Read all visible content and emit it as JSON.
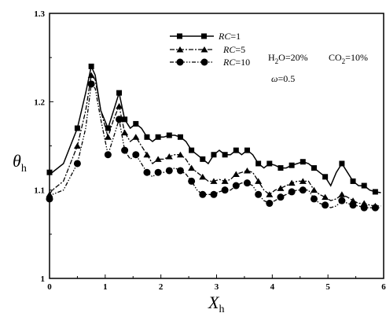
{
  "chart_data": {
    "type": "line",
    "title": "",
    "xlabel": "X",
    "xlabel_sub": "h",
    "ylabel": "θ",
    "ylabel_sub": "h",
    "xlim": [
      0,
      6
    ],
    "ylim": [
      1,
      1.3
    ],
    "xticks": [
      "0",
      "1",
      "2",
      "3",
      "4",
      "5",
      "6"
    ],
    "yticks": [
      "1",
      "1.1",
      "1.2",
      "1.3"
    ],
    "legend_position": "top-left",
    "series": [
      {
        "name": "RC=1",
        "name_italic": "RC",
        "name_rest": "=1",
        "marker": "square",
        "dash": "none",
        "x": [
          0,
          0.05,
          0.25,
          0.5,
          0.65,
          0.75,
          0.82,
          0.92,
          1.05,
          1.15,
          1.25,
          1.35,
          1.45,
          1.55,
          1.65,
          1.75,
          1.85,
          1.95,
          2.05,
          2.15,
          2.25,
          2.35,
          2.45,
          2.55,
          2.65,
          2.75,
          2.85,
          2.95,
          3.05,
          3.15,
          3.25,
          3.35,
          3.45,
          3.55,
          3.65,
          3.75,
          3.85,
          3.95,
          4.05,
          4.15,
          4.25,
          4.35,
          4.45,
          4.55,
          4.65,
          4.75,
          4.85,
          4.95,
          5.05,
          5.15,
          5.25,
          5.35,
          5.45,
          5.55,
          5.65,
          5.75,
          5.85,
          5.95
        ],
        "y": [
          1.12,
          1.12,
          1.13,
          1.17,
          1.21,
          1.24,
          1.23,
          1.19,
          1.17,
          1.19,
          1.21,
          1.18,
          1.17,
          1.175,
          1.17,
          1.16,
          1.155,
          1.16,
          1.16,
          1.162,
          1.162,
          1.16,
          1.155,
          1.145,
          1.14,
          1.135,
          1.13,
          1.14,
          1.145,
          1.14,
          1.14,
          1.145,
          1.14,
          1.145,
          1.14,
          1.13,
          1.125,
          1.13,
          1.128,
          1.125,
          1.125,
          1.128,
          1.13,
          1.132,
          1.13,
          1.125,
          1.12,
          1.115,
          1.105,
          1.12,
          1.13,
          1.12,
          1.11,
          1.105,
          1.105,
          1.1,
          1.098,
          1.097
        ],
        "marker_idx": [
          0,
          3,
          5,
          8,
          10,
          11,
          13,
          15,
          17,
          19,
          21,
          23,
          25,
          27,
          29,
          31,
          33,
          35,
          37,
          39,
          41,
          43,
          45,
          47,
          50,
          52,
          54,
          56
        ]
      },
      {
        "name": "RC=5",
        "name_italic": "RC",
        "name_rest": "=5",
        "marker": "triangle",
        "dash": "6,2,2,2",
        "x": [
          0,
          0.05,
          0.25,
          0.5,
          0.65,
          0.75,
          0.82,
          0.92,
          1.05,
          1.15,
          1.25,
          1.35,
          1.45,
          1.55,
          1.65,
          1.75,
          1.85,
          1.95,
          2.05,
          2.15,
          2.25,
          2.35,
          2.45,
          2.55,
          2.65,
          2.75,
          2.85,
          2.95,
          3.05,
          3.15,
          3.25,
          3.35,
          3.45,
          3.55,
          3.65,
          3.75,
          3.85,
          3.95,
          4.05,
          4.15,
          4.25,
          4.35,
          4.45,
          4.55,
          4.65,
          4.75,
          4.85,
          4.95,
          5.05,
          5.15,
          5.25,
          5.35,
          5.45,
          5.55,
          5.65,
          5.75,
          5.85,
          5.95
        ],
        "y": [
          1.095,
          1.1,
          1.11,
          1.15,
          1.19,
          1.23,
          1.225,
          1.19,
          1.16,
          1.18,
          1.195,
          1.165,
          1.155,
          1.16,
          1.15,
          1.14,
          1.13,
          1.135,
          1.135,
          1.138,
          1.14,
          1.14,
          1.135,
          1.125,
          1.12,
          1.115,
          1.11,
          1.11,
          1.112,
          1.11,
          1.112,
          1.118,
          1.12,
          1.122,
          1.12,
          1.11,
          1.1,
          1.095,
          1.1,
          1.102,
          1.105,
          1.108,
          1.11,
          1.11,
          1.11,
          1.1,
          1.095,
          1.092,
          1.088,
          1.09,
          1.095,
          1.092,
          1.088,
          1.085,
          1.085,
          1.083,
          1.082,
          1.082
        ],
        "marker_idx": [
          0,
          3,
          5,
          8,
          10,
          11,
          13,
          15,
          17,
          19,
          21,
          23,
          25,
          27,
          29,
          31,
          33,
          35,
          37,
          39,
          41,
          43,
          45,
          47,
          50,
          52,
          54,
          56
        ]
      },
      {
        "name": "RC=10",
        "name_italic": "RC",
        "name_rest": "=10",
        "marker": "circle",
        "dash": "5,2,1.5,2,1.5,2",
        "x": [
          0,
          0.05,
          0.25,
          0.5,
          0.65,
          0.75,
          0.82,
          0.92,
          1.05,
          1.15,
          1.25,
          1.35,
          1.45,
          1.55,
          1.65,
          1.75,
          1.85,
          1.95,
          2.05,
          2.15,
          2.25,
          2.35,
          2.45,
          2.55,
          2.65,
          2.75,
          2.85,
          2.95,
          3.05,
          3.15,
          3.25,
          3.35,
          3.45,
          3.55,
          3.65,
          3.75,
          3.85,
          3.95,
          4.05,
          4.15,
          4.25,
          4.35,
          4.45,
          4.55,
          4.65,
          4.75,
          4.85,
          4.95,
          5.05,
          5.15,
          5.25,
          5.35,
          5.45,
          5.55,
          5.65,
          5.75,
          5.85,
          5.95
        ],
        "y": [
          1.09,
          1.095,
          1.1,
          1.13,
          1.17,
          1.22,
          1.215,
          1.18,
          1.14,
          1.16,
          1.18,
          1.145,
          1.135,
          1.14,
          1.13,
          1.12,
          1.115,
          1.12,
          1.12,
          1.122,
          1.125,
          1.122,
          1.118,
          1.11,
          1.1,
          1.095,
          1.095,
          1.095,
          1.098,
          1.1,
          1.1,
          1.105,
          1.108,
          1.108,
          1.105,
          1.095,
          1.088,
          1.085,
          1.088,
          1.092,
          1.095,
          1.098,
          1.1,
          1.1,
          1.1,
          1.09,
          1.085,
          1.083,
          1.08,
          1.082,
          1.088,
          1.085,
          1.083,
          1.082,
          1.08,
          1.08,
          1.08,
          1.08
        ],
        "marker_idx": [
          0,
          3,
          5,
          8,
          10,
          11,
          13,
          15,
          17,
          19,
          21,
          23,
          25,
          27,
          29,
          31,
          33,
          35,
          37,
          39,
          41,
          43,
          45,
          47,
          50,
          52,
          54,
          56
        ]
      }
    ]
  },
  "annotations": {
    "h2o_prefix": "H",
    "h2o_sub": "2",
    "h2o_rest": "O=20%",
    "co2_prefix": "CO",
    "co2_sub": "2",
    "co2_rest": "=10%",
    "omega_italic": "ω",
    "omega_rest": "=0.5"
  }
}
